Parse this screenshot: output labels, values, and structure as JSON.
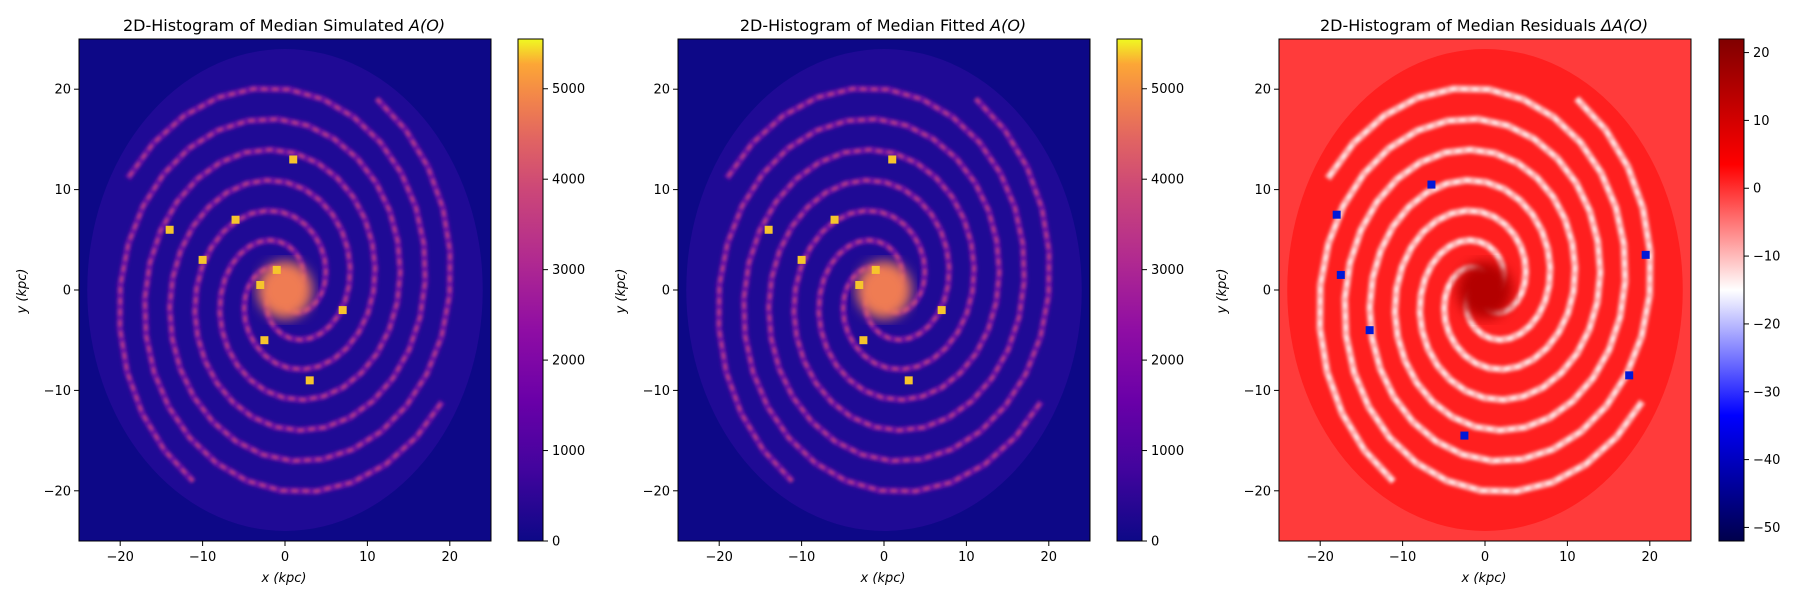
{
  "chart_data": [
    {
      "type": "heatmap",
      "title": "2D-Histogram of Median Simulated A(O)",
      "title_prefix": "2D-Histogram of Median Simulated",
      "title_symbol": "A(O)",
      "xlabel": "x (kpc)",
      "ylabel": "y (kpc)",
      "xlim": [
        -25,
        25
      ],
      "ylim": [
        -25,
        25
      ],
      "xticks": [
        "−20",
        "−10",
        "0",
        "10",
        "20"
      ],
      "yticks": [
        "−20",
        "−10",
        "0",
        "10",
        "20"
      ],
      "grid": false,
      "colormap": "plasma",
      "colorbar": {
        "range": [
          0,
          5550
        ],
        "ticks": [
          "0",
          "1000",
          "2000",
          "3000",
          "4000",
          "5000"
        ]
      },
      "background_color": "#0d0887",
      "disk_radius_kpc": 24
    },
    {
      "type": "heatmap",
      "title": "2D-Histogram of Median Fitted A(O)",
      "title_prefix": "2D-Histogram of Median Fitted",
      "title_symbol": "A(O)",
      "xlabel": "x (kpc)",
      "ylabel": "y (kpc)",
      "xlim": [
        -25,
        25
      ],
      "ylim": [
        -25,
        25
      ],
      "xticks": [
        "−20",
        "−10",
        "0",
        "10",
        "20"
      ],
      "yticks": [
        "−20",
        "−10",
        "0",
        "10",
        "20"
      ],
      "grid": false,
      "colormap": "plasma",
      "colorbar": {
        "range": [
          0,
          5550
        ],
        "ticks": [
          "0",
          "1000",
          "2000",
          "3000",
          "4000",
          "5000"
        ]
      },
      "background_color": "#0d0887",
      "disk_radius_kpc": 24
    },
    {
      "type": "heatmap",
      "title": "2D-Histogram of Median Residuals ΔA(O)",
      "title_prefix": "2D-Histogram of Median Residuals",
      "title_symbol": "ΔA(O)",
      "xlabel": "x (kpc)",
      "ylabel": "y (kpc)",
      "xlim": [
        -25,
        25
      ],
      "ylim": [
        -25,
        25
      ],
      "xticks": [
        "−20",
        "−10",
        "0",
        "10",
        "20"
      ],
      "yticks": [
        "−20",
        "−10",
        "0",
        "10",
        "20"
      ],
      "grid": false,
      "colormap": "seismic",
      "colorbar": {
        "range": [
          -52,
          22
        ],
        "ticks": [
          "20",
          "10",
          "0",
          "−10",
          "−20",
          "−30",
          "−40",
          "−50"
        ]
      },
      "background_color": "#ff3b3b",
      "disk_radius_kpc": 24
    }
  ]
}
